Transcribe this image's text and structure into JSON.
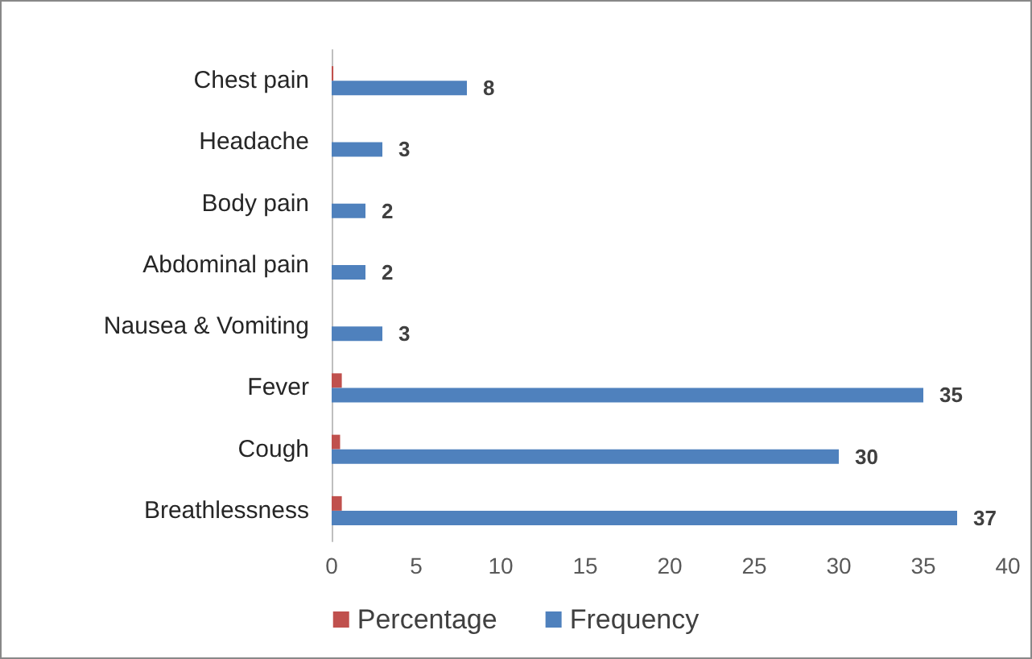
{
  "chart_data": {
    "type": "bar",
    "orientation": "horizontal",
    "categories": [
      "Chest pain",
      "Headache",
      "Body pain",
      "Abdominal pain",
      "Nausea & Vomiting",
      "Fever",
      "Cough",
      "Breathlessness"
    ],
    "series": [
      {
        "name": "Percentage",
        "color": "#c0504d",
        "values": [
          0.1,
          0,
          0,
          0,
          0,
          0.6,
          0.5,
          0.6
        ]
      },
      {
        "name": "Frequency",
        "color": "#4f81bd",
        "values": [
          8,
          3,
          2,
          2,
          3,
          35,
          30,
          37
        ],
        "value_labels": [
          "8",
          "3",
          "2",
          "2",
          "3",
          "35",
          "30",
          "37"
        ]
      }
    ],
    "xlim": [
      0,
      40
    ],
    "xticks": [
      0,
      5,
      10,
      15,
      20,
      25,
      30,
      35,
      40
    ],
    "grid": false,
    "legend": "bottom"
  }
}
